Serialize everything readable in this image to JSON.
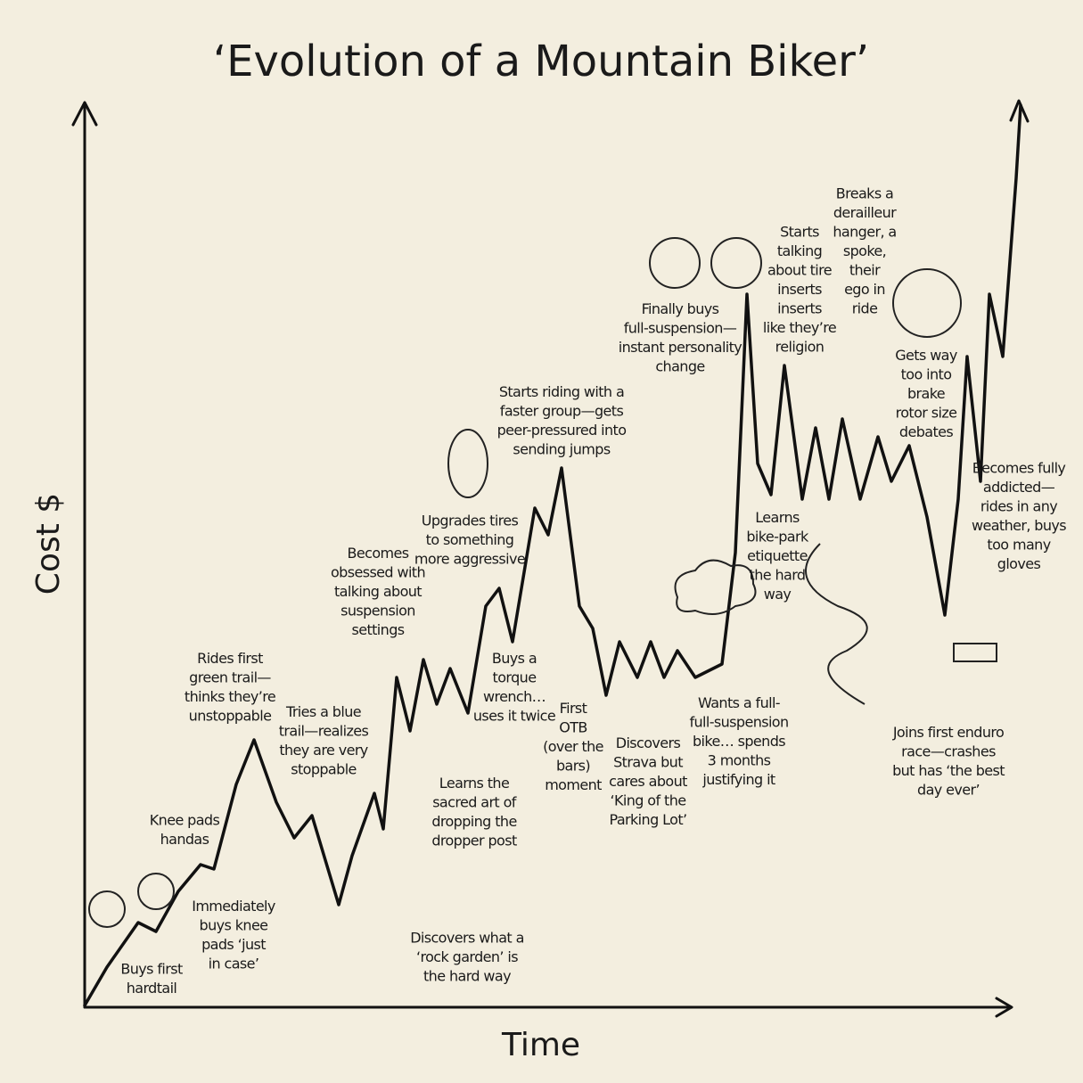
{
  "title": "‘Evolution of a Mountain Biker’",
  "y_axis_label": "Cost $",
  "x_axis_label": "Time",
  "annotations": [
    {
      "lines": [
        "Buys first",
        "hardtail"
      ]
    },
    {
      "lines": [
        "Knee pads",
        "handas"
      ]
    },
    {
      "lines": [
        "Immediately",
        "buys knee",
        "pads ‘just",
        "in case’"
      ]
    },
    {
      "lines": [
        "Rides first",
        "green trail—",
        "thinks they’re",
        "unstoppable"
      ]
    },
    {
      "lines": [
        "Tries a blue",
        "trail—realizes",
        "they are very",
        "stoppable"
      ]
    },
    {
      "lines": [
        "Discovers what a",
        "‘rock garden’ is",
        "the hard way"
      ]
    },
    {
      "lines": [
        "Becomes",
        "obsessed with",
        "talking about",
        "suspension",
        "settings"
      ]
    },
    {
      "lines": [
        "Learns the",
        "sacred art of",
        "dropping the",
        "dropper post"
      ]
    },
    {
      "lines": [
        "Upgrades tires",
        "to something",
        "more aggressive"
      ]
    },
    {
      "lines": [
        "Buys a",
        "torque",
        "wrench…",
        "uses it twice"
      ]
    },
    {
      "lines": [
        "First",
        "OTB",
        "(over the",
        "bars)",
        "moment"
      ]
    },
    {
      "lines": [
        "Starts riding with a",
        "faster group—gets",
        "peer-pressured into",
        "sending jumps"
      ]
    },
    {
      "lines": [
        "Discovers",
        "Strava but",
        "cares about",
        "‘King of the",
        "Parking Lot’"
      ]
    },
    {
      "lines": [
        "Finally buys",
        "full-suspension—",
        "instant personality",
        "change"
      ]
    },
    {
      "lines": [
        "Wants a full-",
        "full-suspension",
        "bike… spends",
        "3 months",
        "justifying it"
      ]
    },
    {
      "lines": [
        "Learns",
        "bike-park",
        "etiquette",
        "the hard",
        "way"
      ]
    },
    {
      "lines": [
        "Starts",
        "talking",
        "about tire",
        "inserts",
        "inserts",
        "like they’re",
        "religion"
      ]
    },
    {
      "lines": [
        "Breaks a",
        "derailleur",
        "hanger, a",
        "spoke,",
        "their",
        "ego in",
        "ride"
      ]
    },
    {
      "lines": [
        "Gets way",
        "too into",
        "brake",
        "rotor size",
        "debates"
      ]
    },
    {
      "lines": [
        "Joins first enduro",
        "race—crashes",
        "but has ‘the best",
        "day ever’"
      ]
    },
    {
      "lines": [
        "Becomes fully",
        "addicted—",
        "rides in any",
        "weather, buys",
        "too many",
        "gloves"
      ]
    }
  ]
}
